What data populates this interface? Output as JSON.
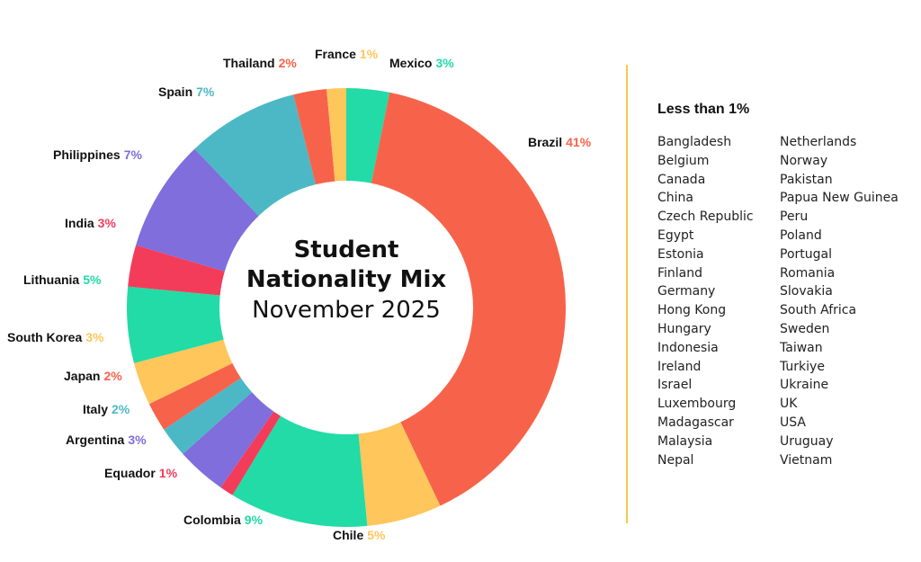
{
  "chart_data": {
    "type": "pie",
    "title": "Student Nationality Mix",
    "subtitle": "November 2025",
    "slices": [
      {
        "label": "Mexico",
        "value": 3,
        "value_label": "3%",
        "color": "#22dba6"
      },
      {
        "label": "Brazil",
        "value": 41,
        "value_label": "41%",
        "color": "#f7634a"
      },
      {
        "label": "Chile",
        "value": 5,
        "value_label": "5%",
        "color": "#ffc65c"
      },
      {
        "label": "Colombia",
        "value": 9,
        "value_label": "9%",
        "color": "#22dba6"
      },
      {
        "label": "Equador",
        "value": 1,
        "value_label": "1%",
        "color": "#f33c5a"
      },
      {
        "label": "Argentina",
        "value": 3,
        "value_label": "3%",
        "color": "#7f6edc"
      },
      {
        "label": "Italy",
        "value": 2,
        "value_label": "2%",
        "color": "#4cb8c5"
      },
      {
        "label": "Japan",
        "value": 2,
        "value_label": "2%",
        "color": "#f7634a"
      },
      {
        "label": "South Korea",
        "value": 3,
        "value_label": "3%",
        "color": "#ffc65c"
      },
      {
        "label": "Lithuania",
        "value": 5,
        "value_label": "5%",
        "color": "#22dba6"
      },
      {
        "label": "India",
        "value": 3,
        "value_label": "3%",
        "color": "#f33c5a"
      },
      {
        "label": "Philippines",
        "value": 7,
        "value_label": "7%",
        "color": "#7f6edc"
      },
      {
        "label": "Spain",
        "value": 7,
        "value_label": "7%",
        "color": "#4cb8c5"
      },
      {
        "label": "Thailand",
        "value": 2,
        "value_label": "2%",
        "color": "#f7634a"
      },
      {
        "label": "France",
        "value": 1,
        "value_label": "1%",
        "color": "#ffc65c"
      }
    ]
  },
  "legend": {
    "title": "Less than 1%",
    "col1": [
      "Bangladesh",
      "Belgium",
      "Canada",
      "China",
      "Czech Republic",
      "Egypt",
      "Estonia",
      "Finland",
      "Germany",
      "Hong Kong",
      "Hungary",
      "Indonesia",
      "Ireland",
      "Israel",
      "Luxembourg",
      "Madagascar",
      "Malaysia",
      "Nepal"
    ],
    "col2": [
      "Netherlands",
      "Norway",
      "Pakistan",
      "Papua New Guinea",
      "Peru",
      "Poland",
      "Portugal",
      "Romania",
      "Slovakia",
      "South Africa",
      "Sweden",
      "Taiwan",
      "Turkiye",
      "Ukraine",
      "UK",
      "USA",
      "Uruguay",
      "Vietnam"
    ]
  }
}
